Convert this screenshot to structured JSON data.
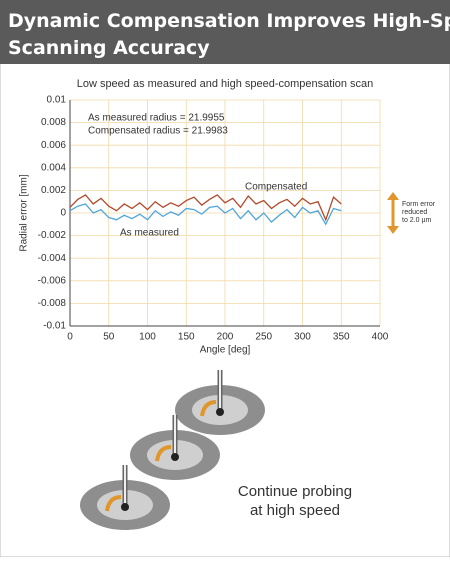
{
  "header": {
    "title_lines": [
      "Dynamic Compensation Improves High-Speed",
      "Scanning Accuracy"
    ]
  },
  "chart_data": {
    "type": "line",
    "title": "Low speed as measured and high speed-compensation scan",
    "x_label": "Angle [deg]",
    "y_label": "Radial error [mm]",
    "x": [
      0,
      10,
      20,
      30,
      40,
      50,
      60,
      70,
      80,
      90,
      100,
      110,
      120,
      130,
      140,
      150,
      160,
      170,
      180,
      190,
      200,
      210,
      220,
      230,
      240,
      250,
      260,
      270,
      280,
      290,
      300,
      310,
      320,
      330,
      340,
      350
    ],
    "series": [
      {
        "name": "Compensated",
        "color": "#b24a2c",
        "values": [
          0.0005,
          0.0012,
          0.0016,
          0.0008,
          0.0013,
          0.0006,
          0.0002,
          0.0008,
          0.0004,
          0.0009,
          0.0003,
          0.001,
          0.0005,
          0.0009,
          0.0006,
          0.0011,
          0.0014,
          0.0007,
          0.0012,
          0.0016,
          0.0009,
          0.0013,
          0.0005,
          0.0015,
          0.0008,
          0.0011,
          0.0004,
          0.0009,
          0.0012,
          0.0006,
          0.0013,
          0.0008,
          0.001,
          -0.0006,
          0.0014,
          0.0008
        ]
      },
      {
        "name": "As measured",
        "color": "#4ea6de",
        "values": [
          0.0002,
          0.0006,
          0.0008,
          0,
          0.0003,
          -0.0004,
          -0.0006,
          -0.0002,
          -0.0005,
          -0.0001,
          -0.0006,
          0.0002,
          -0.0003,
          0.0001,
          -0.0002,
          0.0004,
          0.0003,
          -0.0001,
          0.0005,
          0.0006,
          0,
          0.0004,
          -0.0005,
          0.0002,
          -0.0006,
          0,
          -0.0008,
          -0.0002,
          0.0003,
          -0.0004,
          0.0005,
          0,
          0.0002,
          -0.001,
          0.0004,
          0.0002
        ]
      }
    ],
    "annotations": [
      "As measured radius = 21.9955",
      "Compensated radius = 21.9983"
    ],
    "form_error_note": [
      "Form error",
      "reduced",
      "to 2.0 µm"
    ],
    "xlim": [
      0,
      400
    ],
    "xticks": [
      0,
      50,
      100,
      150,
      200,
      250,
      300,
      350,
      400
    ],
    "ylim": [
      -0.01,
      0.01
    ],
    "yticks": [
      -0.01,
      -0.008,
      -0.006,
      -0.004,
      -0.002,
      0,
      0.002,
      0.004,
      0.006,
      0.008,
      0.01
    ],
    "grid": true
  },
  "caption": {
    "lines": [
      "Continue probing",
      "at high speed"
    ]
  }
}
